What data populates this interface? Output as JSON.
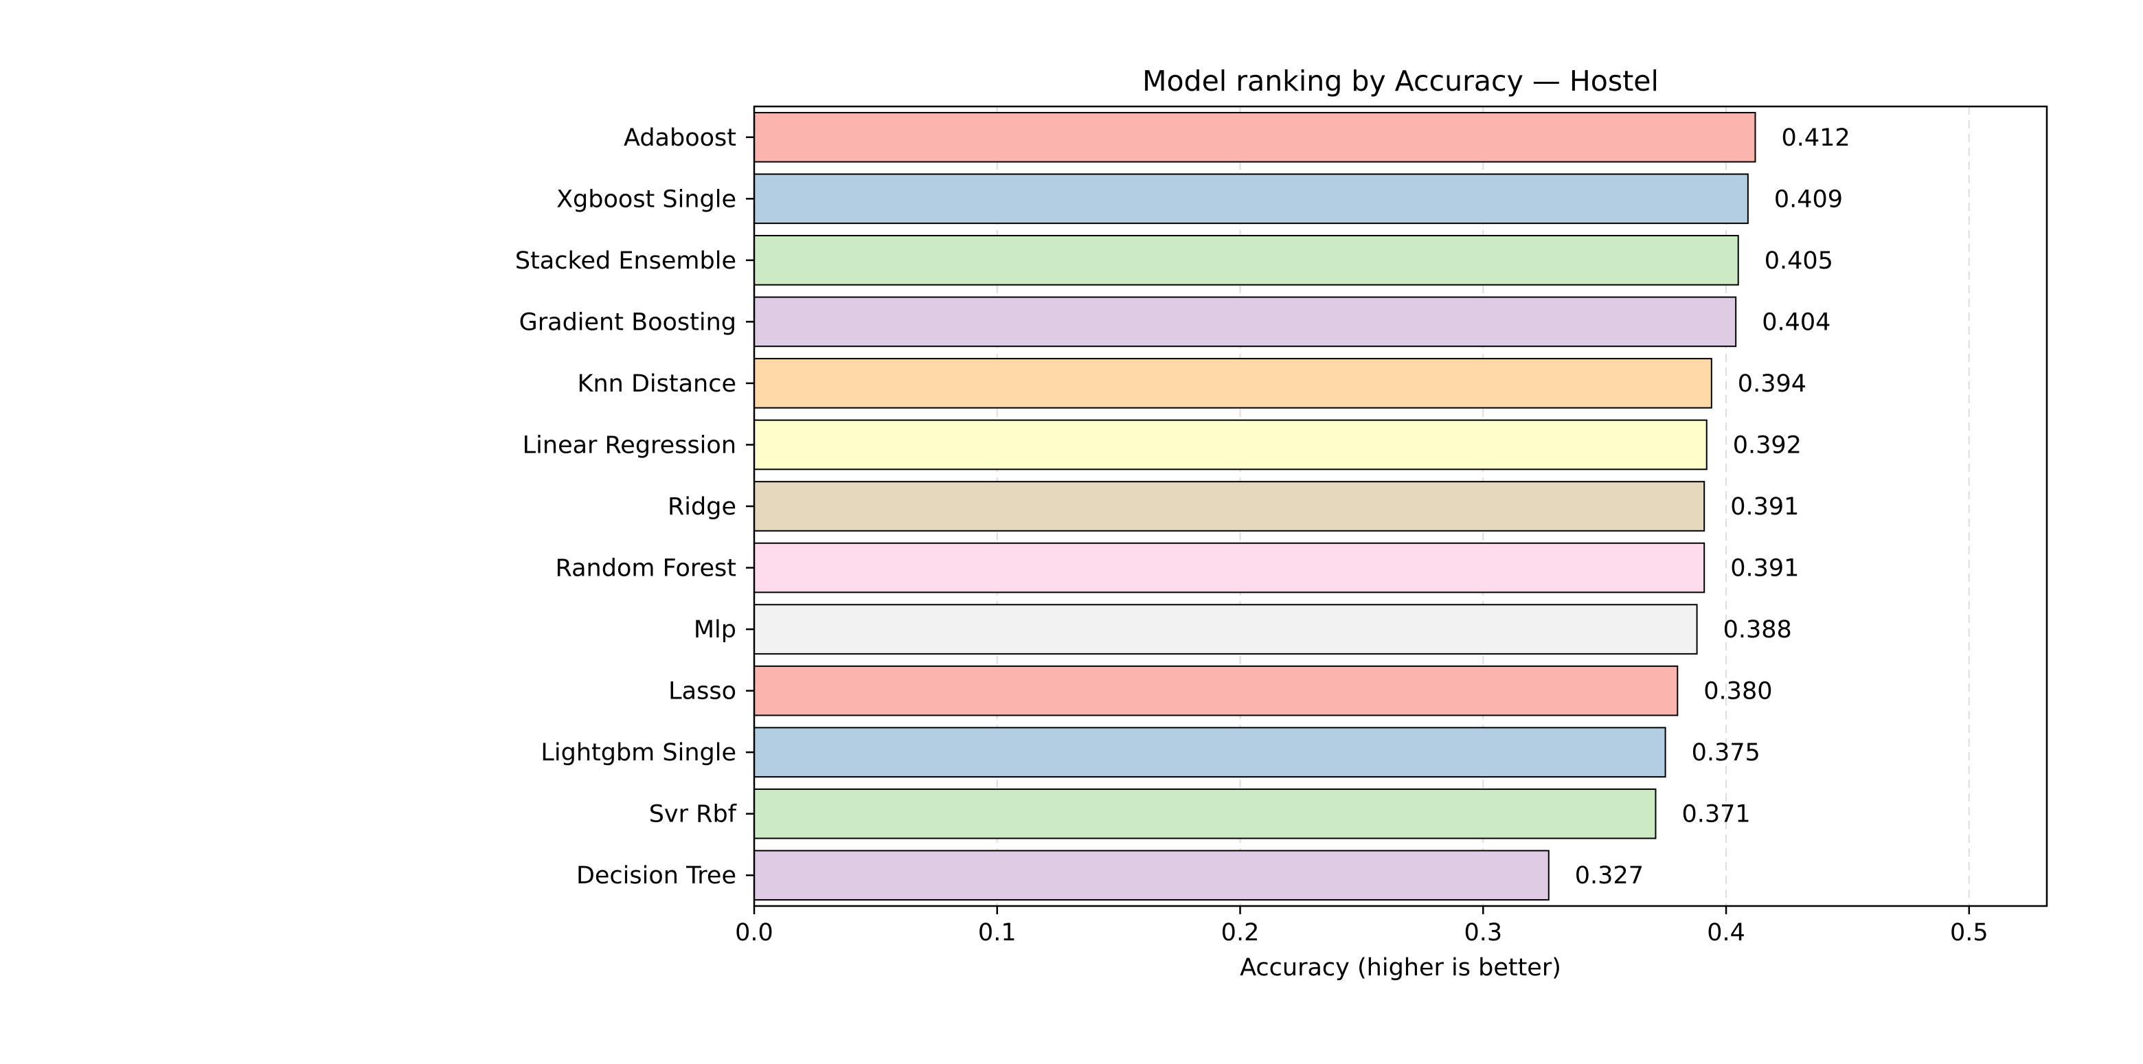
{
  "chart_data": {
    "type": "bar",
    "orientation": "horizontal",
    "title": "Model ranking by Accuracy — Hostel",
    "xlabel": "Accuracy (higher is better)",
    "ylabel": "",
    "xlim": [
      0,
      0.532
    ],
    "xticks": [
      0.0,
      0.1,
      0.2,
      0.3,
      0.4,
      0.5
    ],
    "xtick_labels": [
      "0.0",
      "0.1",
      "0.2",
      "0.3",
      "0.4",
      "0.5"
    ],
    "grid": "vertical dashed",
    "categories": [
      "Adaboost",
      "Xgboost Single",
      "Stacked Ensemble",
      "Gradient Boosting",
      "Knn Distance",
      "Linear Regression",
      "Ridge",
      "Random Forest",
      "Mlp",
      "Lasso",
      "Lightgbm Single",
      "Svr Rbf",
      "Decision Tree"
    ],
    "values": [
      0.412,
      0.409,
      0.405,
      0.404,
      0.394,
      0.392,
      0.391,
      0.391,
      0.388,
      0.38,
      0.375,
      0.371,
      0.327
    ],
    "value_labels": [
      "0.412",
      "0.409",
      "0.405",
      "0.404",
      "0.394",
      "0.392",
      "0.391",
      "0.391",
      "0.388",
      "0.380",
      "0.375",
      "0.371",
      "0.327"
    ],
    "colors": [
      "#fbb4ae",
      "#b3cde3",
      "#ccebc5",
      "#decbe4",
      "#fed9a6",
      "#ffffcc",
      "#e5d8bd",
      "#fddaec",
      "#f2f2f2",
      "#fbb4ae",
      "#b3cde3",
      "#ccebc5",
      "#decbe4"
    ]
  }
}
